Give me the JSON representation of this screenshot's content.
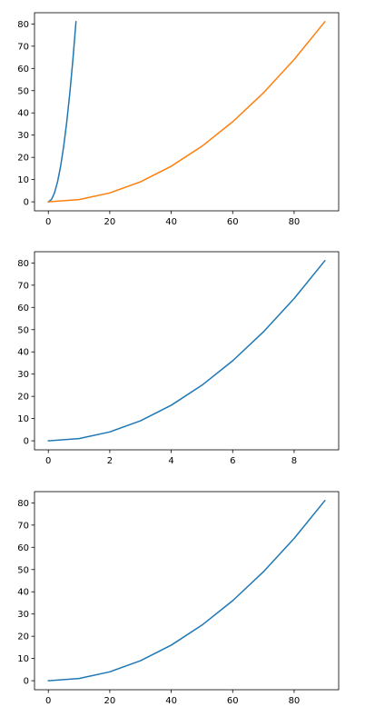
{
  "chart_data": [
    {
      "type": "line",
      "title": "",
      "xlabel": "",
      "ylabel": "",
      "xlim": [
        -4.5,
        94.5
      ],
      "ylim": [
        -4.05,
        85.05
      ],
      "xticks": [
        0,
        20,
        40,
        60,
        80
      ],
      "yticks": [
        0,
        10,
        20,
        30,
        40,
        50,
        60,
        70,
        80
      ],
      "grid": false,
      "legend": null,
      "series": [
        {
          "color": "#1f77b4",
          "x": [
            0,
            1,
            2,
            3,
            4,
            5,
            6,
            7,
            8,
            9
          ],
          "y": [
            0,
            1,
            4,
            9,
            16,
            25,
            36,
            49,
            64,
            81
          ]
        },
        {
          "color": "#ff7f0e",
          "x": [
            0,
            10,
            20,
            30,
            40,
            50,
            60,
            70,
            80,
            90
          ],
          "y": [
            0,
            1,
            4,
            9,
            16,
            25,
            36,
            49,
            64,
            81
          ]
        }
      ]
    },
    {
      "type": "line",
      "title": "",
      "xlabel": "",
      "ylabel": "",
      "xlim": [
        -0.45,
        9.45
      ],
      "ylim": [
        -4.05,
        85.05
      ],
      "xticks": [
        0,
        2,
        4,
        6,
        8
      ],
      "yticks": [
        0,
        10,
        20,
        30,
        40,
        50,
        60,
        70,
        80
      ],
      "grid": false,
      "legend": null,
      "series": [
        {
          "color": "#1f77b4",
          "x": [
            0,
            1,
            2,
            3,
            4,
            5,
            6,
            7,
            8,
            9
          ],
          "y": [
            0,
            1,
            4,
            9,
            16,
            25,
            36,
            49,
            64,
            81
          ]
        }
      ]
    },
    {
      "type": "line",
      "title": "",
      "xlabel": "",
      "ylabel": "",
      "xlim": [
        -4.5,
        94.5
      ],
      "ylim": [
        -4.05,
        85.05
      ],
      "xticks": [
        0,
        20,
        40,
        60,
        80
      ],
      "yticks": [
        0,
        10,
        20,
        30,
        40,
        50,
        60,
        70,
        80
      ],
      "grid": false,
      "legend": null,
      "series": [
        {
          "color": "#1f77b4",
          "x": [
            0,
            10,
            20,
            30,
            40,
            50,
            60,
            70,
            80,
            90
          ],
          "y": [
            0,
            1,
            4,
            9,
            16,
            25,
            36,
            49,
            64,
            81
          ]
        }
      ]
    }
  ]
}
